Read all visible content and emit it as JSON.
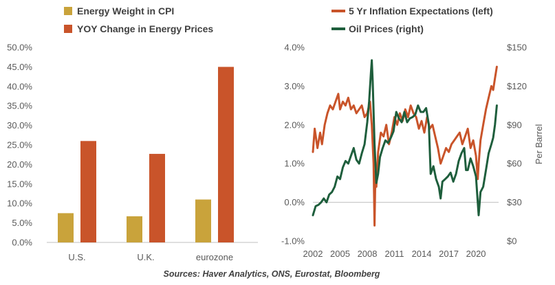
{
  "source_note": "Sources: Haver Analytics, ONS, Eurostat, Bloomberg",
  "chart_data": [
    {
      "type": "bar",
      "legend": [
        "Energy Weight in CPI",
        "YOY Change in Energy Prices"
      ],
      "categories": [
        "U.S.",
        "U.K.",
        "eurozone"
      ],
      "series": [
        {
          "name": "Energy Weight in CPI",
          "values": [
            7.5,
            6.7,
            11.0
          ],
          "color": "#C9A33B"
        },
        {
          "name": "YOY Change in Energy Prices",
          "values": [
            26.0,
            22.7,
            45.0
          ],
          "color": "#C9542A"
        }
      ],
      "ylim": [
        0,
        50
      ],
      "yticks": [
        0,
        5,
        10,
        15,
        20,
        25,
        30,
        35,
        40,
        45,
        50
      ],
      "ytick_labels": [
        "0.0%",
        "5.0%",
        "10.0%",
        "15.0%",
        "20.0%",
        "25.0%",
        "30.0%",
        "35.0%",
        "40.0%",
        "45.0%",
        "50.0%"
      ],
      "grid": false,
      "legend_position": "top"
    },
    {
      "type": "line",
      "legend": [
        "5 Yr Inflation Expectations (left)",
        "Oil Prices (right)"
      ],
      "x_ticks": [
        2002,
        2005,
        2008,
        2011,
        2014,
        2017,
        2020
      ],
      "xlim": [
        2002,
        2022.5
      ],
      "y_left": {
        "lim": [
          -1.0,
          4.0
        ],
        "ticks": [
          -1,
          0,
          1,
          2,
          3,
          4
        ],
        "tick_labels": [
          "-1.0%",
          "0.0%",
          "1.0%",
          "2.0%",
          "3.0%",
          "4.0%"
        ]
      },
      "y_right": {
        "label": "Per Barrel",
        "lim": [
          0,
          150
        ],
        "ticks": [
          0,
          30,
          60,
          90,
          120,
          150
        ],
        "tick_labels": [
          "$0",
          "$30",
          "$60",
          "$90",
          "$120",
          "$150"
        ]
      },
      "series": [
        {
          "name": "5 Yr Inflation Expectations (left)",
          "axis": "left",
          "color": "#C9542A",
          "x": [
            2002.0,
            2002.2,
            2002.5,
            2002.8,
            2003.0,
            2003.3,
            2003.6,
            2003.9,
            2004.2,
            2004.5,
            2004.8,
            2005.0,
            2005.3,
            2005.6,
            2005.9,
            2006.2,
            2006.5,
            2006.8,
            2007.1,
            2007.4,
            2007.7,
            2008.0,
            2008.3,
            2008.5,
            2008.7,
            2008.8,
            2008.9,
            2009.0,
            2009.2,
            2009.5,
            2009.8,
            2010.1,
            2010.4,
            2010.7,
            2011.0,
            2011.3,
            2011.6,
            2011.9,
            2012.2,
            2012.5,
            2012.8,
            2013.1,
            2013.4,
            2013.7,
            2014.0,
            2014.3,
            2014.6,
            2014.9,
            2015.2,
            2015.5,
            2015.8,
            2016.1,
            2016.4,
            2016.7,
            2017.0,
            2017.3,
            2017.6,
            2017.9,
            2018.2,
            2018.5,
            2018.8,
            2019.1,
            2019.4,
            2019.7,
            2020.0,
            2020.2,
            2020.3,
            2020.5,
            2020.8,
            2021.1,
            2021.4,
            2021.7,
            2021.9,
            2022.1,
            2022.3
          ],
          "values": [
            1.3,
            1.9,
            1.4,
            1.8,
            1.5,
            2.0,
            2.3,
            2.5,
            2.4,
            2.6,
            2.8,
            2.4,
            2.6,
            2.5,
            2.7,
            2.4,
            2.5,
            2.3,
            2.4,
            2.5,
            2.2,
            2.3,
            2.6,
            2.0,
            1.0,
            -0.6,
            0.8,
            0.4,
            1.3,
            1.8,
            1.7,
            2.0,
            1.5,
            1.8,
            2.2,
            2.0,
            2.3,
            2.1,
            2.4,
            2.2,
            2.5,
            2.3,
            2.2,
            1.9,
            2.1,
            1.8,
            2.2,
            1.9,
            2.0,
            1.7,
            1.4,
            1.0,
            1.2,
            1.4,
            1.3,
            1.5,
            1.6,
            1.7,
            1.8,
            1.5,
            1.7,
            1.9,
            1.4,
            1.6,
            1.2,
            0.6,
            1.0,
            1.6,
            2.0,
            2.4,
            2.7,
            3.0,
            2.9,
            3.2,
            3.5
          ]
        },
        {
          "name": "Oil Prices (right)",
          "axis": "right",
          "color": "#1E5E3C",
          "x": [
            2002.0,
            2002.3,
            2002.6,
            2002.9,
            2003.2,
            2003.5,
            2003.8,
            2004.1,
            2004.4,
            2004.7,
            2005.0,
            2005.3,
            2005.6,
            2005.9,
            2006.2,
            2006.5,
            2006.8,
            2007.1,
            2007.4,
            2007.7,
            2008.0,
            2008.2,
            2008.4,
            2008.5,
            2008.6,
            2008.8,
            2009.0,
            2009.2,
            2009.4,
            2009.7,
            2010.0,
            2010.3,
            2010.6,
            2010.9,
            2011.2,
            2011.5,
            2011.8,
            2012.1,
            2012.4,
            2012.7,
            2013.0,
            2013.3,
            2013.6,
            2013.9,
            2014.2,
            2014.5,
            2014.8,
            2015.0,
            2015.3,
            2015.6,
            2015.9,
            2016.1,
            2016.3,
            2016.6,
            2016.9,
            2017.2,
            2017.5,
            2017.8,
            2018.1,
            2018.4,
            2018.7,
            2018.9,
            2019.1,
            2019.4,
            2019.7,
            2020.0,
            2020.2,
            2020.3,
            2020.5,
            2020.8,
            2021.1,
            2021.4,
            2021.7,
            2021.9,
            2022.1,
            2022.3
          ],
          "values": [
            20,
            27,
            28,
            30,
            33,
            30,
            36,
            38,
            42,
            50,
            48,
            57,
            62,
            60,
            66,
            72,
            63,
            60,
            68,
            75,
            92,
            108,
            130,
            140,
            124,
            75,
            45,
            52,
            65,
            72,
            78,
            76,
            80,
            85,
            100,
            95,
            92,
            100,
            92,
            95,
            96,
            98,
            105,
            100,
            100,
            103,
            90,
            52,
            58,
            48,
            42,
            33,
            46,
            48,
            50,
            53,
            46,
            52,
            62,
            68,
            72,
            55,
            55,
            64,
            58,
            50,
            30,
            20,
            38,
            42,
            55,
            68,
            75,
            80,
            90,
            105
          ]
        }
      ]
    }
  ]
}
